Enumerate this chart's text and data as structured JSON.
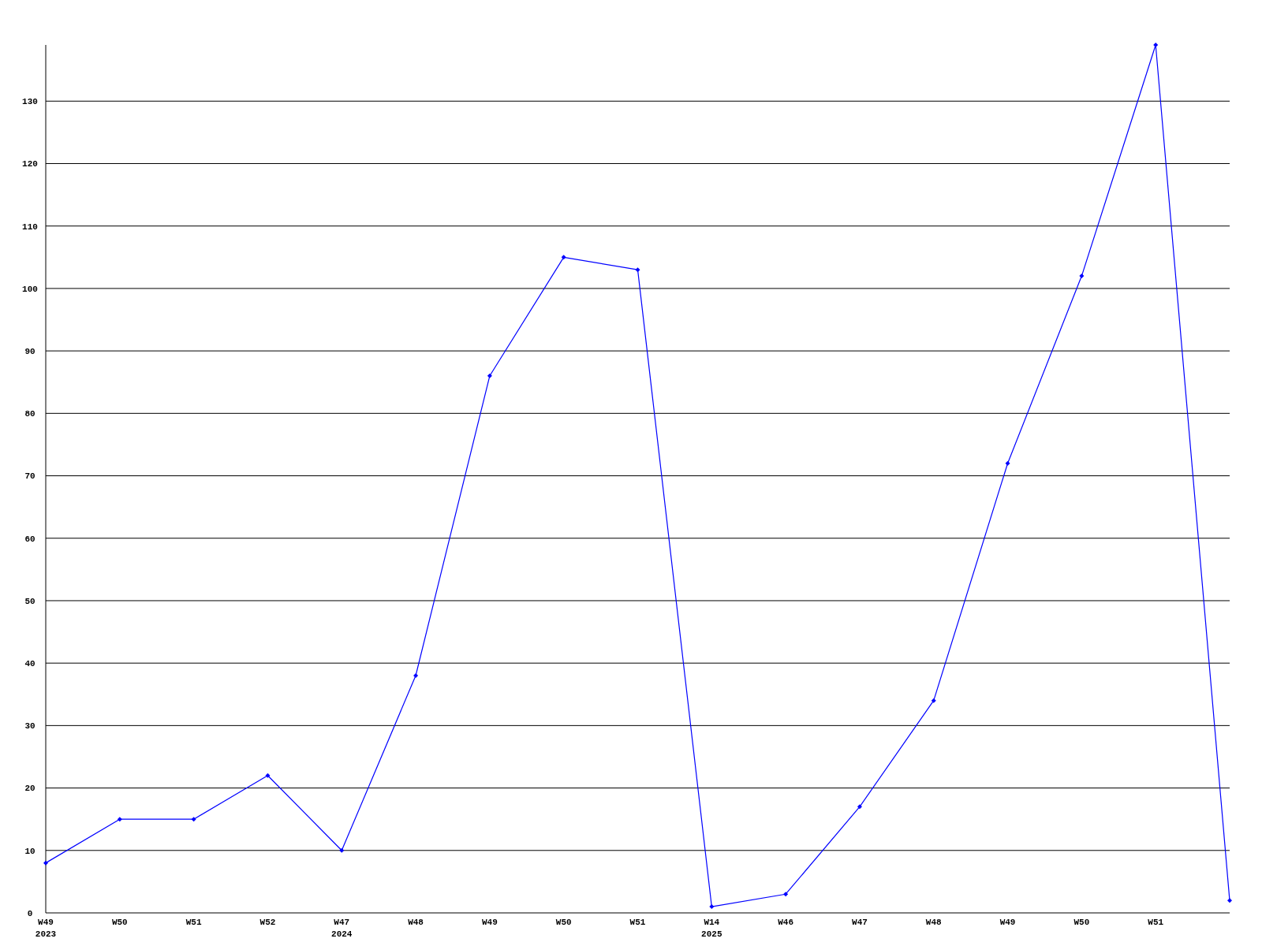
{
  "chart_data": {
    "type": "line",
    "categories": [
      "W49\n2023",
      "W50",
      "W51",
      "W52",
      "W47\n2024",
      "W48",
      "W49",
      "W50",
      "W51",
      "W14\n2025",
      "W46",
      "W47",
      "W48",
      "W49",
      "W50",
      "W51",
      null
    ],
    "series": [
      {
        "color": "#0000ff",
        "values": [
          8,
          15,
          15,
          22,
          10,
          38,
          86,
          105,
          103,
          1,
          3,
          17,
          34,
          72,
          102,
          139,
          2
        ]
      }
    ],
    "ylim": [
      0,
      139
    ],
    "yticks": [
      0,
      10,
      20,
      30,
      40,
      50,
      60,
      70,
      80,
      90,
      100,
      110,
      120,
      130
    ],
    "grid": "y",
    "marker": "diamond",
    "line_style": "solid"
  }
}
